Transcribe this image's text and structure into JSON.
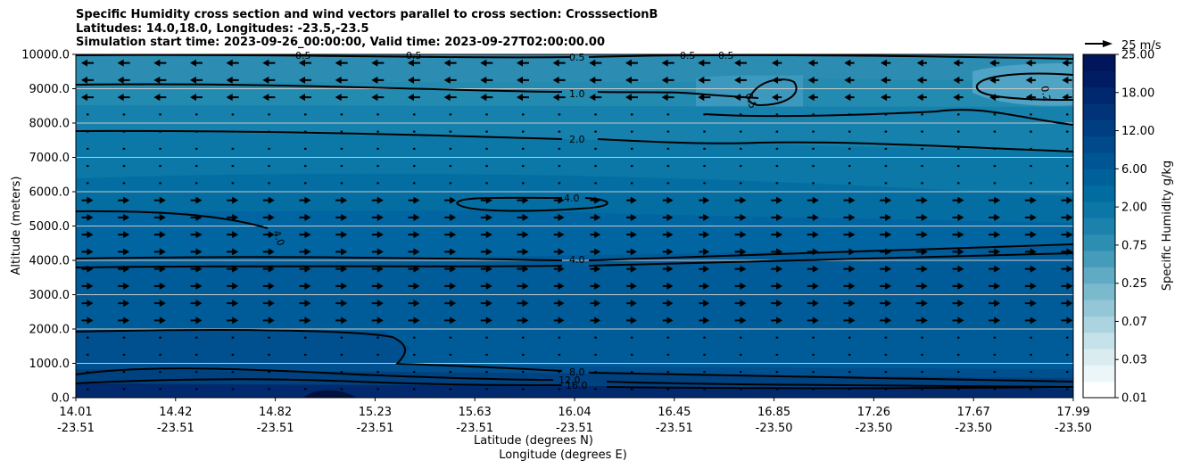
{
  "figure": {
    "title_lines": [
      "Specific Humidity cross section and wind vectors parallel to cross section: CrosssectionB",
      "Latitudes: 14.0,18.0, Longitudes: -23.5,-23.5",
      "Simulation start time: 2023-09-26_00:00:00, Valid time: 2023-09-27T02:00:00.00"
    ]
  },
  "chart_data": {
    "type": "heatmap",
    "variable": "Specific Humidity",
    "ylabel": "Altitude (meters)",
    "xlabel_line1": "Latitude (degrees N)",
    "xlabel_line2": "Longitude (degrees E)",
    "ylim": [
      0,
      10000
    ],
    "yticks": [
      "0.0",
      "1000.0",
      "2000.0",
      "3000.0",
      "4000.0",
      "5000.0",
      "6000.0",
      "7000.0",
      "8000.0",
      "9000.0",
      "10000.0"
    ],
    "xticks_lat": [
      "14.01",
      "14.42",
      "14.82",
      "15.23",
      "15.63",
      "16.04",
      "16.45",
      "16.85",
      "17.26",
      "17.67",
      "17.99"
    ],
    "xticks_lon": [
      "-23.51",
      "-23.51",
      "-23.51",
      "-23.51",
      "-23.51",
      "-23.51",
      "-23.51",
      "-23.50",
      "-23.50",
      "-23.50",
      "-23.50"
    ],
    "grid": "horizontal",
    "colorbar": {
      "label": "Specific Humidity g/kg",
      "tick_labels": [
        "0.01",
        "0.03",
        "0.07",
        "0.25",
        "0.75",
        "2.00",
        "6.00",
        "12.00",
        "18.00",
        "25.00"
      ],
      "colors": [
        "#ffffff",
        "#ecf5f8",
        "#dbecf1",
        "#c5e1ea",
        "#abd3e0",
        "#93c6d6",
        "#7bb9cd",
        "#60abc3",
        "#459cba",
        "#2e8eb1",
        "#1d82ab",
        "#0c77a7",
        "#006ca0",
        "#00619a",
        "#005594",
        "#004a8c",
        "#003e82",
        "#003378",
        "#00286e",
        "#001d63",
        "#00155a"
      ]
    },
    "quiver_key": {
      "label": "25 m/s",
      "value": 25
    },
    "contour_labels": [
      "0.5",
      "0.5",
      "0.5",
      "0.5",
      "0.5",
      "1.0",
      "0.5",
      "0.2",
      "2.0",
      "4.0",
      "4.0",
      "4.0",
      "8.0",
      "12.0",
      "16.0"
    ]
  }
}
